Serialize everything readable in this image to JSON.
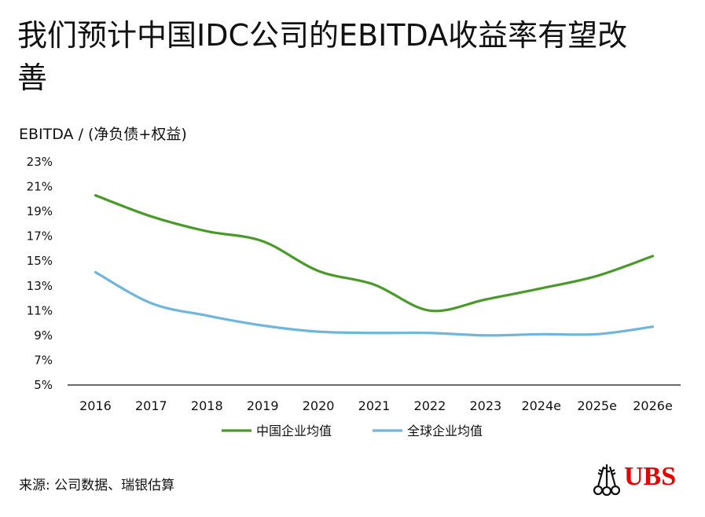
{
  "title": "我们预计中国IDC公司的EBITDA收益率有望改善",
  "source": "来源: 公司数据、瑞银估算",
  "logo": {
    "text": "UBS",
    "color": "#e60000"
  },
  "colors": {
    "china": "#4a9a2a",
    "global": "#6fb6dc",
    "axis": "#111111"
  },
  "chart_data": {
    "type": "line",
    "ylabel": "EBITDA / (净负债+权益)",
    "xlabel": "",
    "categories": [
      "2016",
      "2017",
      "2018",
      "2019",
      "2020",
      "2021",
      "2022",
      "2023",
      "2024e",
      "2025e",
      "2026e"
    ],
    "ylim": [
      5,
      23
    ],
    "yticks": [
      5,
      7,
      9,
      11,
      13,
      15,
      17,
      19,
      21,
      23
    ],
    "ytick_labels": [
      "5%",
      "7%",
      "9%",
      "11%",
      "13%",
      "15%",
      "17%",
      "19%",
      "21%",
      "23%"
    ],
    "series": [
      {
        "name": "中国企业均值",
        "key": "china",
        "values": [
          20.3,
          18.6,
          17.4,
          16.6,
          14.2,
          13.1,
          11.0,
          11.9,
          12.8,
          13.8,
          15.4
        ]
      },
      {
        "name": "全球企业均值",
        "key": "global",
        "values": [
          14.1,
          11.6,
          10.6,
          9.8,
          9.3,
          9.2,
          9.2,
          9.0,
          9.1,
          9.1,
          9.7
        ]
      }
    ],
    "legend": "bottom-center",
    "grid": false
  }
}
